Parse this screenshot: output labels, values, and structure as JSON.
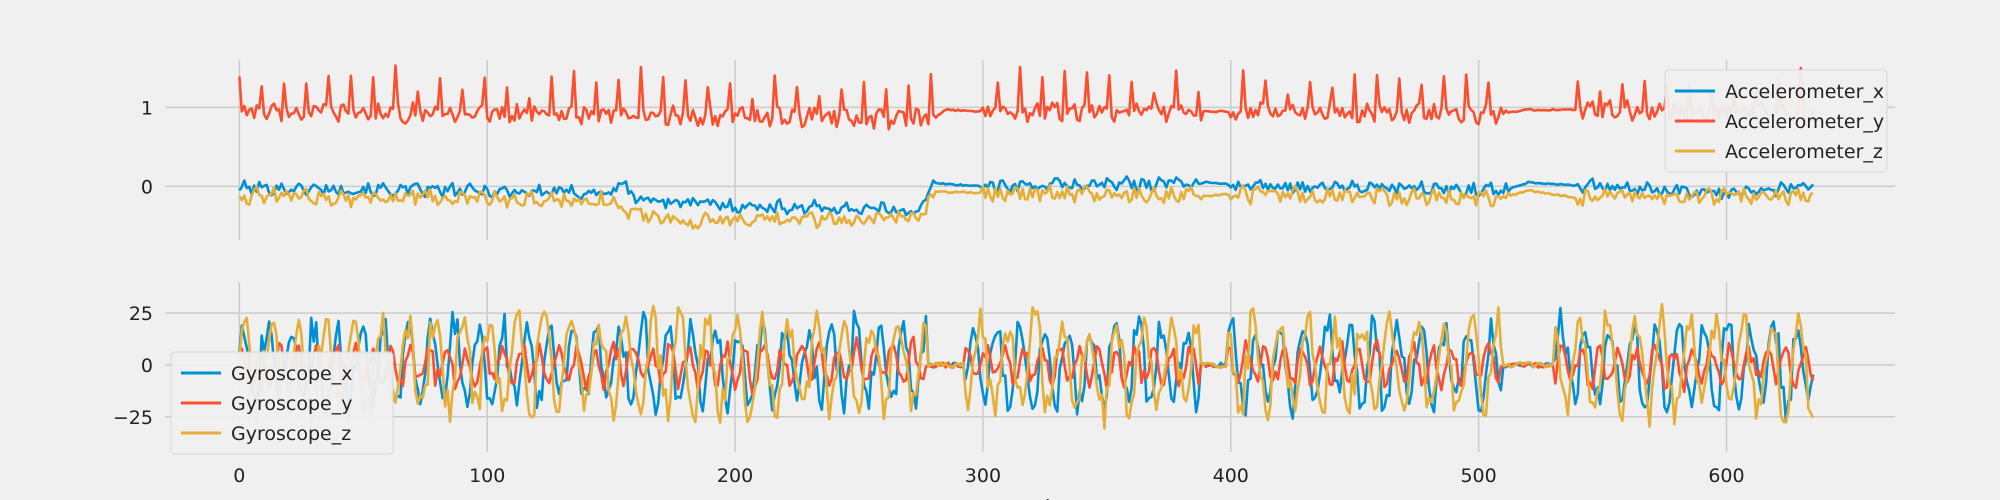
{
  "chart_data": [
    {
      "type": "line",
      "xlim": [
        -30,
        668
      ],
      "ylim": [
        -0.68,
        1.6
      ],
      "yticks": [
        0,
        1
      ],
      "xticks": [
        0,
        100,
        200,
        300,
        400,
        500,
        600
      ],
      "show_x_tick_labels": false,
      "xlabel": "",
      "ylabel": "",
      "grid": true,
      "legend_loc": "upper right",
      "series": [
        {
          "name": "Accelerometer_x",
          "color": "#008fd5",
          "segments": [
            [
              0,
              -0.02
            ],
            [
              150,
              -0.08
            ],
            [
              155,
              0.04
            ],
            [
              160,
              -0.16
            ],
            [
              200,
              -0.25
            ],
            [
              275,
              -0.3
            ],
            [
              280,
              0.04
            ],
            [
              300,
              0.0
            ],
            [
              390,
              0.05
            ],
            [
              400,
              0.02
            ],
            [
              510,
              -0.05
            ],
            [
              520,
              0.05
            ],
            [
              600,
              -0.1
            ],
            [
              635,
              0.02
            ]
          ],
          "noise_amp": 0.07,
          "spike_amp": 0.0,
          "spike_every": 0
        },
        {
          "name": "Accelerometer_y",
          "color": "#fc4f30",
          "segments": [
            [
              0,
              0.95
            ],
            [
              150,
              0.9
            ],
            [
              280,
              0.85
            ],
            [
              285,
              0.97
            ],
            [
              300,
              0.95
            ],
            [
              390,
              0.95
            ],
            [
              400,
              0.95
            ],
            [
              510,
              0.92
            ],
            [
              520,
              0.97
            ],
            [
              540,
              0.97
            ],
            [
              635,
              0.93
            ]
          ],
          "noise_amp": 0.1,
          "spike_amp": 0.45,
          "spike_every": 9
        },
        {
          "name": "Accelerometer_z",
          "color": "#e5ae38",
          "segments": [
            [
              0,
              -0.12
            ],
            [
              150,
              -0.18
            ],
            [
              155,
              -0.3
            ],
            [
              180,
              -0.45
            ],
            [
              275,
              -0.4
            ],
            [
              280,
              -0.07
            ],
            [
              390,
              -0.12
            ],
            [
              400,
              -0.1
            ],
            [
              510,
              -0.15
            ],
            [
              520,
              -0.05
            ],
            [
              540,
              -0.15
            ],
            [
              635,
              -0.12
            ]
          ],
          "noise_amp": 0.09,
          "spike_amp": 0.0,
          "spike_every": 0
        }
      ]
    },
    {
      "type": "line",
      "xlim": [
        -30,
        668
      ],
      "ylim": [
        -42,
        40
      ],
      "yticks": [
        -25,
        0,
        25
      ],
      "ytick_labels": [
        "−25",
        "0",
        "25"
      ],
      "xticks": [
        0,
        100,
        200,
        300,
        400,
        500,
        600
      ],
      "xtick_labels": [
        "0",
        "100",
        "200",
        "300",
        "400",
        "500",
        "600"
      ],
      "xlabel": "samples",
      "ylabel": "",
      "grid": true,
      "legend_loc": "lower left",
      "series": [
        {
          "name": "Gyroscope_x",
          "color": "#008fd5",
          "quiet": [
            [
              278,
              292
            ],
            [
              388,
              398
            ],
            [
              510,
              530
            ]
          ],
          "amp": 22,
          "period": 9.5,
          "seed": 3
        },
        {
          "name": "Gyroscope_y",
          "color": "#fc4f30",
          "quiet": [
            [
              278,
              292
            ],
            [
              388,
              398
            ],
            [
              510,
              530
            ]
          ],
          "amp": 10,
          "period": 7.5,
          "seed": 7
        },
        {
          "name": "Gyroscope_z",
          "color": "#e5ae38",
          "quiet": [
            [
              278,
              292
            ],
            [
              388,
              398
            ],
            [
              510,
              530
            ]
          ],
          "amp": 25,
          "period": 11,
          "seed": 11
        }
      ]
    }
  ]
}
